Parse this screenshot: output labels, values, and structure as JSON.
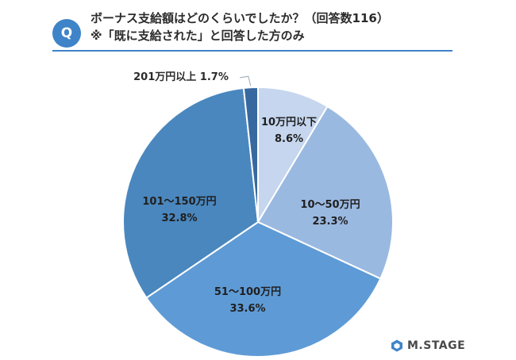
{
  "header": {
    "badge": "Q",
    "title_line1": "ボーナス支給額はどのくらいでしたか？（回答数116）",
    "title_line2": "※「既に支給された」と回答した方のみ"
  },
  "brand": {
    "logo_text": "M.STAGE"
  },
  "colors": {
    "accent": "#3f83c8",
    "text": "#2b2b2b"
  },
  "chart_data": {
    "type": "pie",
    "start": "12 o'clock",
    "direction": "clockwise",
    "slices": [
      {
        "label": "10万円以下",
        "value": 8.6,
        "value_label": "8.6%",
        "color": "#c5d6ee"
      },
      {
        "label": "10～50万円",
        "value": 23.3,
        "value_label": "23.3%",
        "color": "#9ab9e1"
      },
      {
        "label": "51～100万円",
        "value": 33.6,
        "value_label": "33.6%",
        "color": "#5e9bd6"
      },
      {
        "label": "101～150万円",
        "value": 32.8,
        "value_label": "32.8%",
        "color": "#4a87be"
      },
      {
        "label": "201万円以上",
        "value": 1.7,
        "value_label": "1.7%",
        "color": "#3769a0"
      }
    ]
  }
}
